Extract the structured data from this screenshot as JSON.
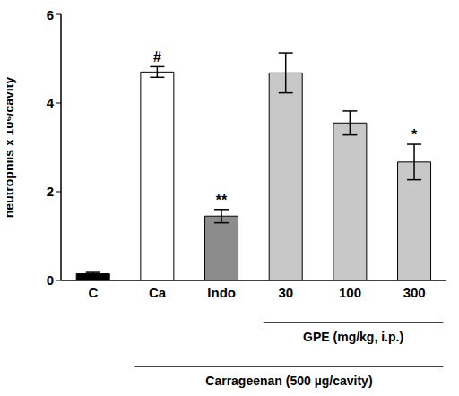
{
  "chart_data": {
    "type": "bar",
    "categories": [
      "C",
      "Ca",
      "Indo",
      "30",
      "100",
      "300"
    ],
    "values": [
      0.15,
      4.7,
      1.45,
      4.68,
      3.55,
      2.67
    ],
    "errors": [
      0.03,
      0.12,
      0.15,
      0.45,
      0.27,
      0.4
    ],
    "annotations": [
      null,
      "#",
      "**",
      null,
      null,
      "*"
    ],
    "colors": [
      "#000000",
      "#ffffff",
      "#8c8c8c",
      "#c8c8c8",
      "#c8c8c8",
      "#c8c8c8"
    ],
    "y_label": "neutrophils x 10⁶/cavity",
    "ylim": [
      0,
      6
    ],
    "yticks": [
      0,
      2,
      4,
      6
    ],
    "groups": [
      {
        "label": "GPE (mg/kg, i.p.)",
        "categories": [
          "30",
          "100",
          "300"
        ]
      },
      {
        "label": "Carrageenan (500 µg/cavity)",
        "categories": [
          "Ca",
          "Indo",
          "30",
          "100",
          "300"
        ]
      }
    ]
  }
}
